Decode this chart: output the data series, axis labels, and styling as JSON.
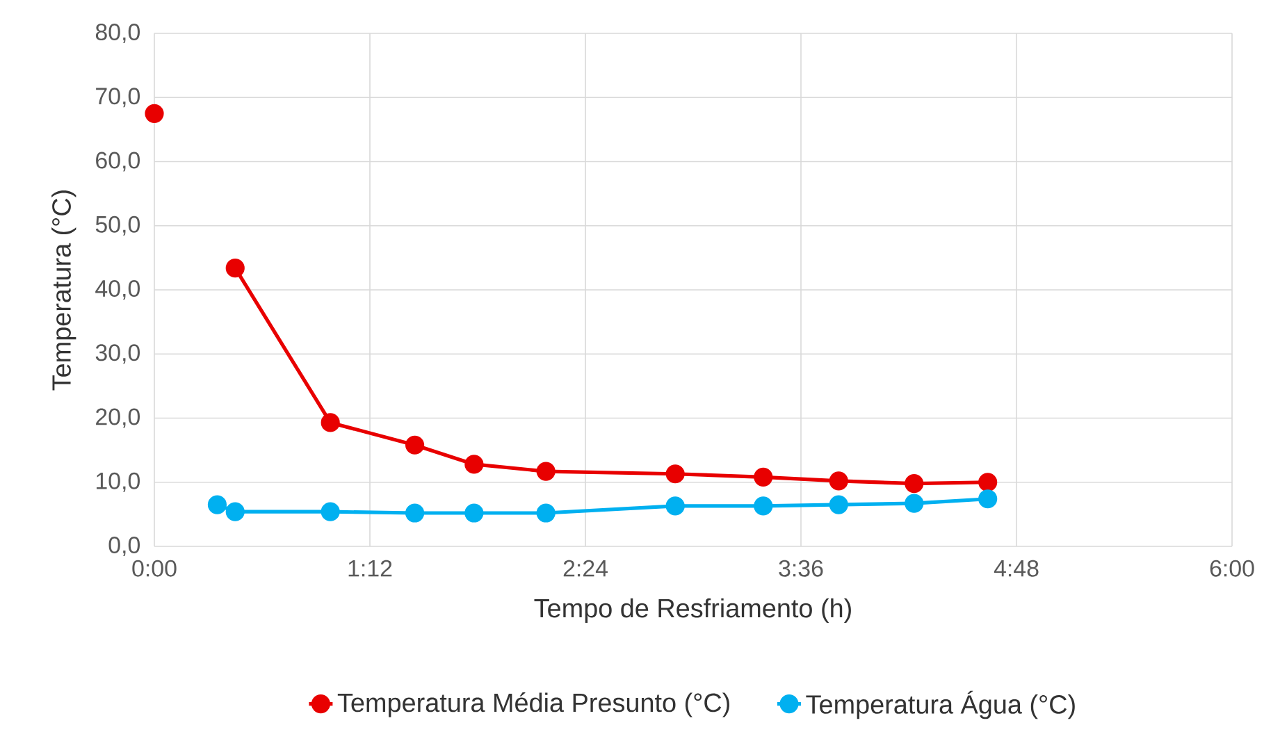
{
  "chart_data": {
    "type": "line",
    "xlabel": "Tempo de Resfriamento (h)",
    "ylabel": "Temperatura (°C)",
    "xlim": [
      0,
      6
    ],
    "ylim": [
      0,
      80
    ],
    "xticks": [
      {
        "value": 0,
        "label": "0:00"
      },
      {
        "value": 1.2,
        "label": "1:12"
      },
      {
        "value": 2.4,
        "label": "2:24"
      },
      {
        "value": 3.6,
        "label": "3:36"
      },
      {
        "value": 4.8,
        "label": "4:48"
      },
      {
        "value": 6,
        "label": "6:00"
      }
    ],
    "yticks": [
      {
        "value": 0,
        "label": "0,0"
      },
      {
        "value": 10,
        "label": "10,0"
      },
      {
        "value": 20,
        "label": "20,0"
      },
      {
        "value": 30,
        "label": "30,0"
      },
      {
        "value": 40,
        "label": "40,0"
      },
      {
        "value": 50,
        "label": "50,0"
      },
      {
        "value": 60,
        "label": "60,0"
      },
      {
        "value": 70,
        "label": "70,0"
      },
      {
        "value": 80,
        "label": "80,0"
      }
    ],
    "grid": true,
    "legend": "bottom",
    "marker": "circle",
    "line_style": "solid",
    "series": [
      {
        "name": "Temperatura Média Presunto (°C)",
        "color": "#e80000",
        "x": [
          0,
          0.2,
          0.45,
          0.98,
          1.45,
          1.78,
          2.18,
          2.9,
          3.39,
          3.81,
          4.23,
          4.64
        ],
        "values": [
          67.5,
          null,
          43.4,
          19.3,
          15.8,
          12.8,
          11.7,
          11.3,
          10.8,
          10.2,
          9.8,
          10.0
        ]
      },
      {
        "name": "Temperatura Água (°C)",
        "color": "#00b0f0",
        "x": [
          0.35,
          0.45,
          0.98,
          1.45,
          1.78,
          2.18,
          2.9,
          3.39,
          3.81,
          4.23,
          4.64
        ],
        "values": [
          6.5,
          5.4,
          5.4,
          5.2,
          5.2,
          5.2,
          6.3,
          6.3,
          6.5,
          6.7,
          7.4
        ]
      }
    ]
  }
}
